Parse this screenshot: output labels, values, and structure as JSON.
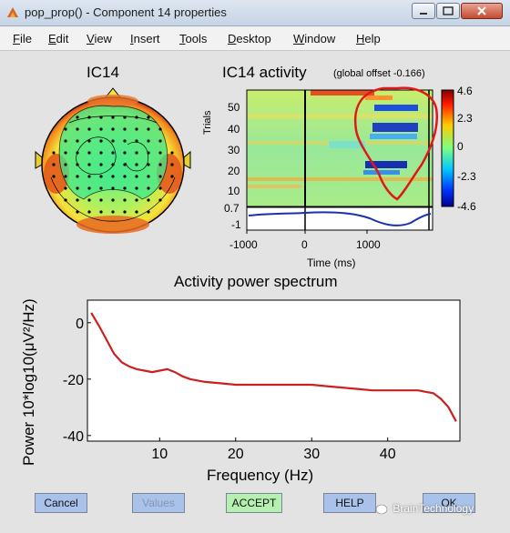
{
  "window": {
    "title": "pop_prop() - Component 14 properties"
  },
  "menu": [
    "File",
    "Edit",
    "View",
    "Insert",
    "Tools",
    "Desktop",
    "Window",
    "Help"
  ],
  "topo": {
    "title": "IC14"
  },
  "erp_image": {
    "title": "IC14 activity",
    "subtitle": "(global offset -0.166)",
    "ylabel": "Trials",
    "trial_ticks": [
      "50",
      "40",
      "30",
      "20",
      "10"
    ],
    "colorbar_ticks": [
      "4.6",
      "2.3",
      "0",
      "-2.3",
      "-4.6"
    ],
    "erp_ticks": [
      "0.7",
      "-1"
    ],
    "xticks": [
      "-1000",
      "0",
      "1000"
    ],
    "xlabel": "Time (ms)"
  },
  "chart_data": {
    "type": "line",
    "title": "Activity power spectrum",
    "xlabel": "Frequency (Hz)",
    "ylabel": "Power 10*log10(μV²/Hz)",
    "xlim": [
      0.5,
      49.5
    ],
    "ylim": [
      -42,
      8
    ],
    "xticks": [
      10,
      20,
      30,
      40
    ],
    "yticks": [
      0,
      -20,
      -40
    ],
    "color": "#cc2020",
    "x": [
      1,
      2,
      3,
      4,
      5,
      6,
      7,
      8,
      9,
      10,
      11,
      12,
      13,
      14,
      15,
      16,
      18,
      20,
      22,
      24,
      26,
      28,
      30,
      32,
      34,
      36,
      38,
      40,
      42,
      44,
      45,
      46,
      47,
      48,
      49
    ],
    "y": [
      3.5,
      -1,
      -6,
      -11,
      -14,
      -15.5,
      -16.5,
      -17,
      -17.5,
      -17,
      -16.5,
      -17.5,
      -19,
      -20,
      -20.5,
      -21,
      -21.5,
      -22,
      -22,
      -22,
      -22,
      -22,
      -22,
      -22.5,
      -23,
      -23.5,
      -24,
      -24,
      -24,
      -24,
      -24.5,
      -25,
      -27,
      -30,
      -35
    ]
  },
  "buttons": {
    "cancel": "Cancel",
    "values": "Values",
    "accept": "ACCEPT",
    "help": "HELP",
    "ok": "OK"
  },
  "watermark": "BrainTechnology"
}
